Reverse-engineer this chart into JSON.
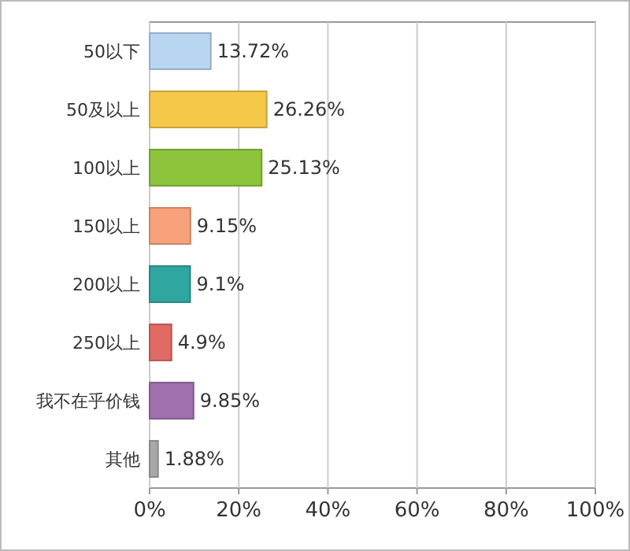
{
  "chart_data": {
    "type": "bar",
    "orientation": "horizontal",
    "categories": [
      "50以下",
      "50及以上",
      "100以上",
      "150以上",
      "200以上",
      "250以上",
      "我不在乎价钱",
      "其他"
    ],
    "values": [
      13.72,
      26.26,
      25.13,
      9.15,
      9.1,
      4.9,
      9.85,
      1.88
    ],
    "colors": [
      "#b8d6f2",
      "#f5c84a",
      "#8cc43c",
      "#f7a27a",
      "#2fa6a0",
      "#e06a64",
      "#a070b0",
      "#a8a8a8"
    ],
    "value_labels": [
      "13.72%",
      "26.26%",
      "25.13%",
      "9.15%",
      "9.1%",
      "4.9%",
      "9.85%",
      "1.88%"
    ],
    "xlim": [
      0,
      100
    ],
    "xticks": [
      {
        "value": 0,
        "label": "0%"
      },
      {
        "value": 20,
        "label": "20%"
      },
      {
        "value": 40,
        "label": "40%"
      },
      {
        "value": 60,
        "label": "60%"
      },
      {
        "value": 80,
        "label": "80%"
      },
      {
        "value": 100,
        "label": "100%"
      }
    ],
    "grid": "x"
  }
}
